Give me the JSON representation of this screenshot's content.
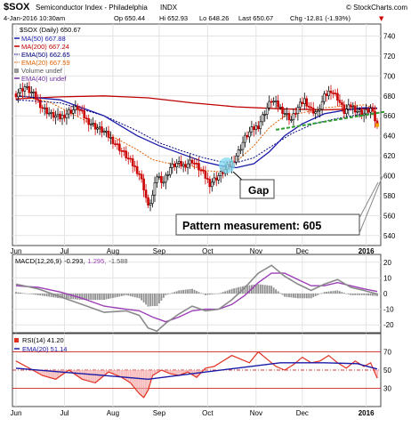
{
  "header": {
    "symbol": "$SOX",
    "name": "Semiconductor Index - Philadelphia",
    "exchange": "INDX",
    "brand": "© StockCharts.com",
    "date": "4-Jan-2016 10:30am",
    "open": "Op 650.44",
    "high": "Hi 652.93",
    "low": "Lo 648.26",
    "last": "Last 650.67",
    "change": "Chg -12.81 (-1.93%)",
    "change_arrow": "▼"
  },
  "legend_price": [
    {
      "text": "$SOX (Daily) 650.67",
      "color": "#000000"
    },
    {
      "text": "MA(50) 667.88",
      "color": "#1a1aa8"
    },
    {
      "text": "MA(200) 667.24",
      "color": "#c00000"
    },
    {
      "text": "EMA(50) 662.65",
      "color": "#000080"
    },
    {
      "text": "EMA(20) 667.59",
      "color": "#e06000"
    },
    {
      "text": "Volume undef",
      "color": "#555555"
    },
    {
      "text": "EMA(40) undef",
      "color": "#7030a0"
    }
  ],
  "legend_macd": {
    "label": "MACD(12,26,9)",
    "v1": "-0.293,",
    "v2": "1.295,",
    "v3": "-1.588"
  },
  "legend_rsi": {
    "label": "RSI(14) 41.20",
    "ema": "EMA(20) 51.14"
  },
  "annotations": {
    "gap": "Gap",
    "pattern": "Pattern measurement: 605"
  },
  "colors": {
    "up": "#000000",
    "down": "#cc0000",
    "ma50": "#1a1aa8",
    "ma200": "#c00000",
    "ema50": "#000080",
    "ema20": "#e06000",
    "trend": "#2e9e2e",
    "gap": "#7fd8f0",
    "macd_line": "#1a1a1a",
    "signal": "#9b3fb5",
    "hist": "#909090",
    "rsi": "#e03020",
    "rsi_ema": "#1a1aa8"
  },
  "chart_data": [
    {
      "type": "candlestick",
      "title": "$SOX (Daily) 650.67",
      "x_months": [
        "Jun",
        "Jul",
        "Aug",
        "Sep",
        "Oct",
        "Nov",
        "Dec",
        "2016"
      ],
      "yticks": [
        540,
        560,
        580,
        600,
        620,
        640,
        660,
        680,
        700,
        720,
        740
      ],
      "ylim": [
        530,
        752
      ],
      "close_path": [
        [
          0,
          682
        ],
        [
          4,
          689
        ],
        [
          8,
          681
        ],
        [
          12,
          668
        ],
        [
          16,
          661
        ],
        [
          20,
          658
        ],
        [
          24,
          664
        ],
        [
          28,
          668
        ],
        [
          32,
          656
        ],
        [
          36,
          649
        ],
        [
          40,
          644
        ],
        [
          44,
          635
        ],
        [
          48,
          625
        ],
        [
          52,
          614
        ],
        [
          56,
          602
        ],
        [
          58,
          588
        ],
        [
          60,
          568
        ],
        [
          62,
          580
        ],
        [
          64,
          600
        ],
        [
          67,
          594
        ],
        [
          70,
          608
        ],
        [
          73,
          612
        ],
        [
          76,
          610
        ],
        [
          80,
          615
        ],
        [
          84,
          605
        ],
        [
          88,
          592
        ],
        [
          92,
          600
        ],
        [
          95,
          606
        ],
        [
          98,
          613
        ],
        [
          101,
          624
        ],
        [
          104,
          638
        ],
        [
          107,
          646
        ],
        [
          110,
          650
        ],
        [
          113,
          664
        ],
        [
          116,
          676
        ],
        [
          119,
          670
        ],
        [
          122,
          663
        ],
        [
          125,
          656
        ],
        [
          128,
          668
        ],
        [
          131,
          676
        ],
        [
          134,
          666
        ],
        [
          137,
          663
        ],
        [
          140,
          679
        ],
        [
          143,
          686
        ],
        [
          146,
          678
        ],
        [
          149,
          664
        ],
        [
          152,
          670
        ],
        [
          155,
          665
        ],
        [
          158,
          662
        ],
        [
          161,
          667
        ],
        [
          164,
          650.67
        ]
      ],
      "ma50_path": [
        [
          0,
          680
        ],
        [
          20,
          676
        ],
        [
          40,
          660
        ],
        [
          55,
          640
        ],
        [
          65,
          630
        ],
        [
          75,
          622
        ],
        [
          85,
          614
        ],
        [
          93,
          610
        ],
        [
          100,
          608
        ],
        [
          108,
          612
        ],
        [
          115,
          624
        ],
        [
          122,
          640
        ],
        [
          130,
          652
        ],
        [
          140,
          662
        ],
        [
          150,
          666
        ],
        [
          158,
          668
        ],
        [
          164,
          667.88
        ]
      ],
      "ma200_path": [
        [
          0,
          677
        ],
        [
          20,
          679
        ],
        [
          40,
          680
        ],
        [
          60,
          678
        ],
        [
          80,
          673
        ],
        [
          100,
          669
        ],
        [
          120,
          667
        ],
        [
          140,
          666
        ],
        [
          155,
          667
        ],
        [
          164,
          667.24
        ]
      ],
      "ema50_path": [
        [
          0,
          676
        ],
        [
          20,
          673
        ],
        [
          40,
          660
        ],
        [
          55,
          645
        ],
        [
          65,
          633
        ],
        [
          75,
          625
        ],
        [
          85,
          618
        ],
        [
          93,
          614
        ],
        [
          100,
          613
        ],
        [
          108,
          618
        ],
        [
          115,
          628
        ],
        [
          125,
          642
        ],
        [
          135,
          652
        ],
        [
          145,
          657
        ],
        [
          155,
          661
        ],
        [
          164,
          662.65
        ]
      ],
      "ema20_path": [
        [
          0,
          681
        ],
        [
          15,
          674
        ],
        [
          30,
          657
        ],
        [
          45,
          638
        ],
        [
          55,
          626
        ],
        [
          62,
          616
        ],
        [
          70,
          612
        ],
        [
          78,
          611
        ],
        [
          86,
          605
        ],
        [
          93,
          604
        ],
        [
          100,
          614
        ],
        [
          108,
          630
        ],
        [
          115,
          648
        ],
        [
          122,
          660
        ],
        [
          130,
          663
        ],
        [
          140,
          668
        ],
        [
          150,
          670
        ],
        [
          158,
          671
        ],
        [
          164,
          667.59
        ]
      ],
      "trendline": [
        [
          118,
          646
        ],
        [
          164,
          662
        ]
      ]
    },
    {
      "type": "line",
      "title": "MACD(12,26,9)",
      "yticks": [
        -20,
        -10,
        0,
        10,
        20
      ],
      "ylim": [
        -25,
        25
      ],
      "macd": [
        [
          0,
          6
        ],
        [
          10,
          3
        ],
        [
          20,
          -2
        ],
        [
          30,
          -7
        ],
        [
          40,
          -12
        ],
        [
          50,
          -11
        ],
        [
          56,
          -14
        ],
        [
          60,
          -22
        ],
        [
          64,
          -24
        ],
        [
          68,
          -19
        ],
        [
          74,
          -13
        ],
        [
          80,
          -8
        ],
        [
          86,
          -11
        ],
        [
          92,
          -10
        ],
        [
          98,
          -4
        ],
        [
          104,
          4
        ],
        [
          110,
          13
        ],
        [
          116,
          18
        ],
        [
          122,
          11
        ],
        [
          128,
          6
        ],
        [
          134,
          2
        ],
        [
          140,
          6
        ],
        [
          146,
          9
        ],
        [
          152,
          4
        ],
        [
          158,
          2
        ],
        [
          164,
          -0.293
        ]
      ],
      "signal": [
        [
          0,
          5
        ],
        [
          10,
          4
        ],
        [
          20,
          1
        ],
        [
          30,
          -3
        ],
        [
          40,
          -8
        ],
        [
          50,
          -10
        ],
        [
          56,
          -11
        ],
        [
          62,
          -15
        ],
        [
          68,
          -18
        ],
        [
          74,
          -15
        ],
        [
          80,
          -11
        ],
        [
          86,
          -10
        ],
        [
          92,
          -10
        ],
        [
          98,
          -7
        ],
        [
          104,
          -1
        ],
        [
          110,
          7
        ],
        [
          116,
          13
        ],
        [
          122,
          13
        ],
        [
          128,
          9
        ],
        [
          134,
          5
        ],
        [
          140,
          5
        ],
        [
          146,
          7
        ],
        [
          152,
          5
        ],
        [
          158,
          3
        ],
        [
          164,
          1.295
        ]
      ]
    },
    {
      "type": "line",
      "title": "RSI(14) 41.20",
      "yticks": [
        30,
        50,
        70
      ],
      "ylim": [
        10,
        90
      ],
      "rsi": [
        [
          0,
          60
        ],
        [
          6,
          52
        ],
        [
          12,
          44
        ],
        [
          18,
          40
        ],
        [
          24,
          50
        ],
        [
          30,
          40
        ],
        [
          36,
          36
        ],
        [
          42,
          48
        ],
        [
          48,
          42
        ],
        [
          52,
          36
        ],
        [
          56,
          24
        ],
        [
          58,
          20
        ],
        [
          60,
          28
        ],
        [
          62,
          44
        ],
        [
          66,
          50
        ],
        [
          70,
          46
        ],
        [
          74,
          44
        ],
        [
          78,
          48
        ],
        [
          82,
          42
        ],
        [
          86,
          52
        ],
        [
          90,
          54
        ],
        [
          94,
          60
        ],
        [
          98,
          66
        ],
        [
          102,
          62
        ],
        [
          106,
          58
        ],
        [
          110,
          70
        ],
        [
          114,
          62
        ],
        [
          118,
          54
        ],
        [
          122,
          50
        ],
        [
          126,
          56
        ],
        [
          130,
          64
        ],
        [
          134,
          58
        ],
        [
          138,
          60
        ],
        [
          142,
          66
        ],
        [
          146,
          58
        ],
        [
          150,
          52
        ],
        [
          154,
          60
        ],
        [
          158,
          54
        ],
        [
          161,
          58
        ],
        [
          164,
          41.2
        ]
      ],
      "rsi_ema": [
        [
          0,
          52
        ],
        [
          20,
          48
        ],
        [
          40,
          44
        ],
        [
          60,
          40
        ],
        [
          80,
          46
        ],
        [
          100,
          52
        ],
        [
          120,
          58
        ],
        [
          140,
          58
        ],
        [
          155,
          57
        ],
        [
          164,
          51.14
        ]
      ]
    }
  ]
}
